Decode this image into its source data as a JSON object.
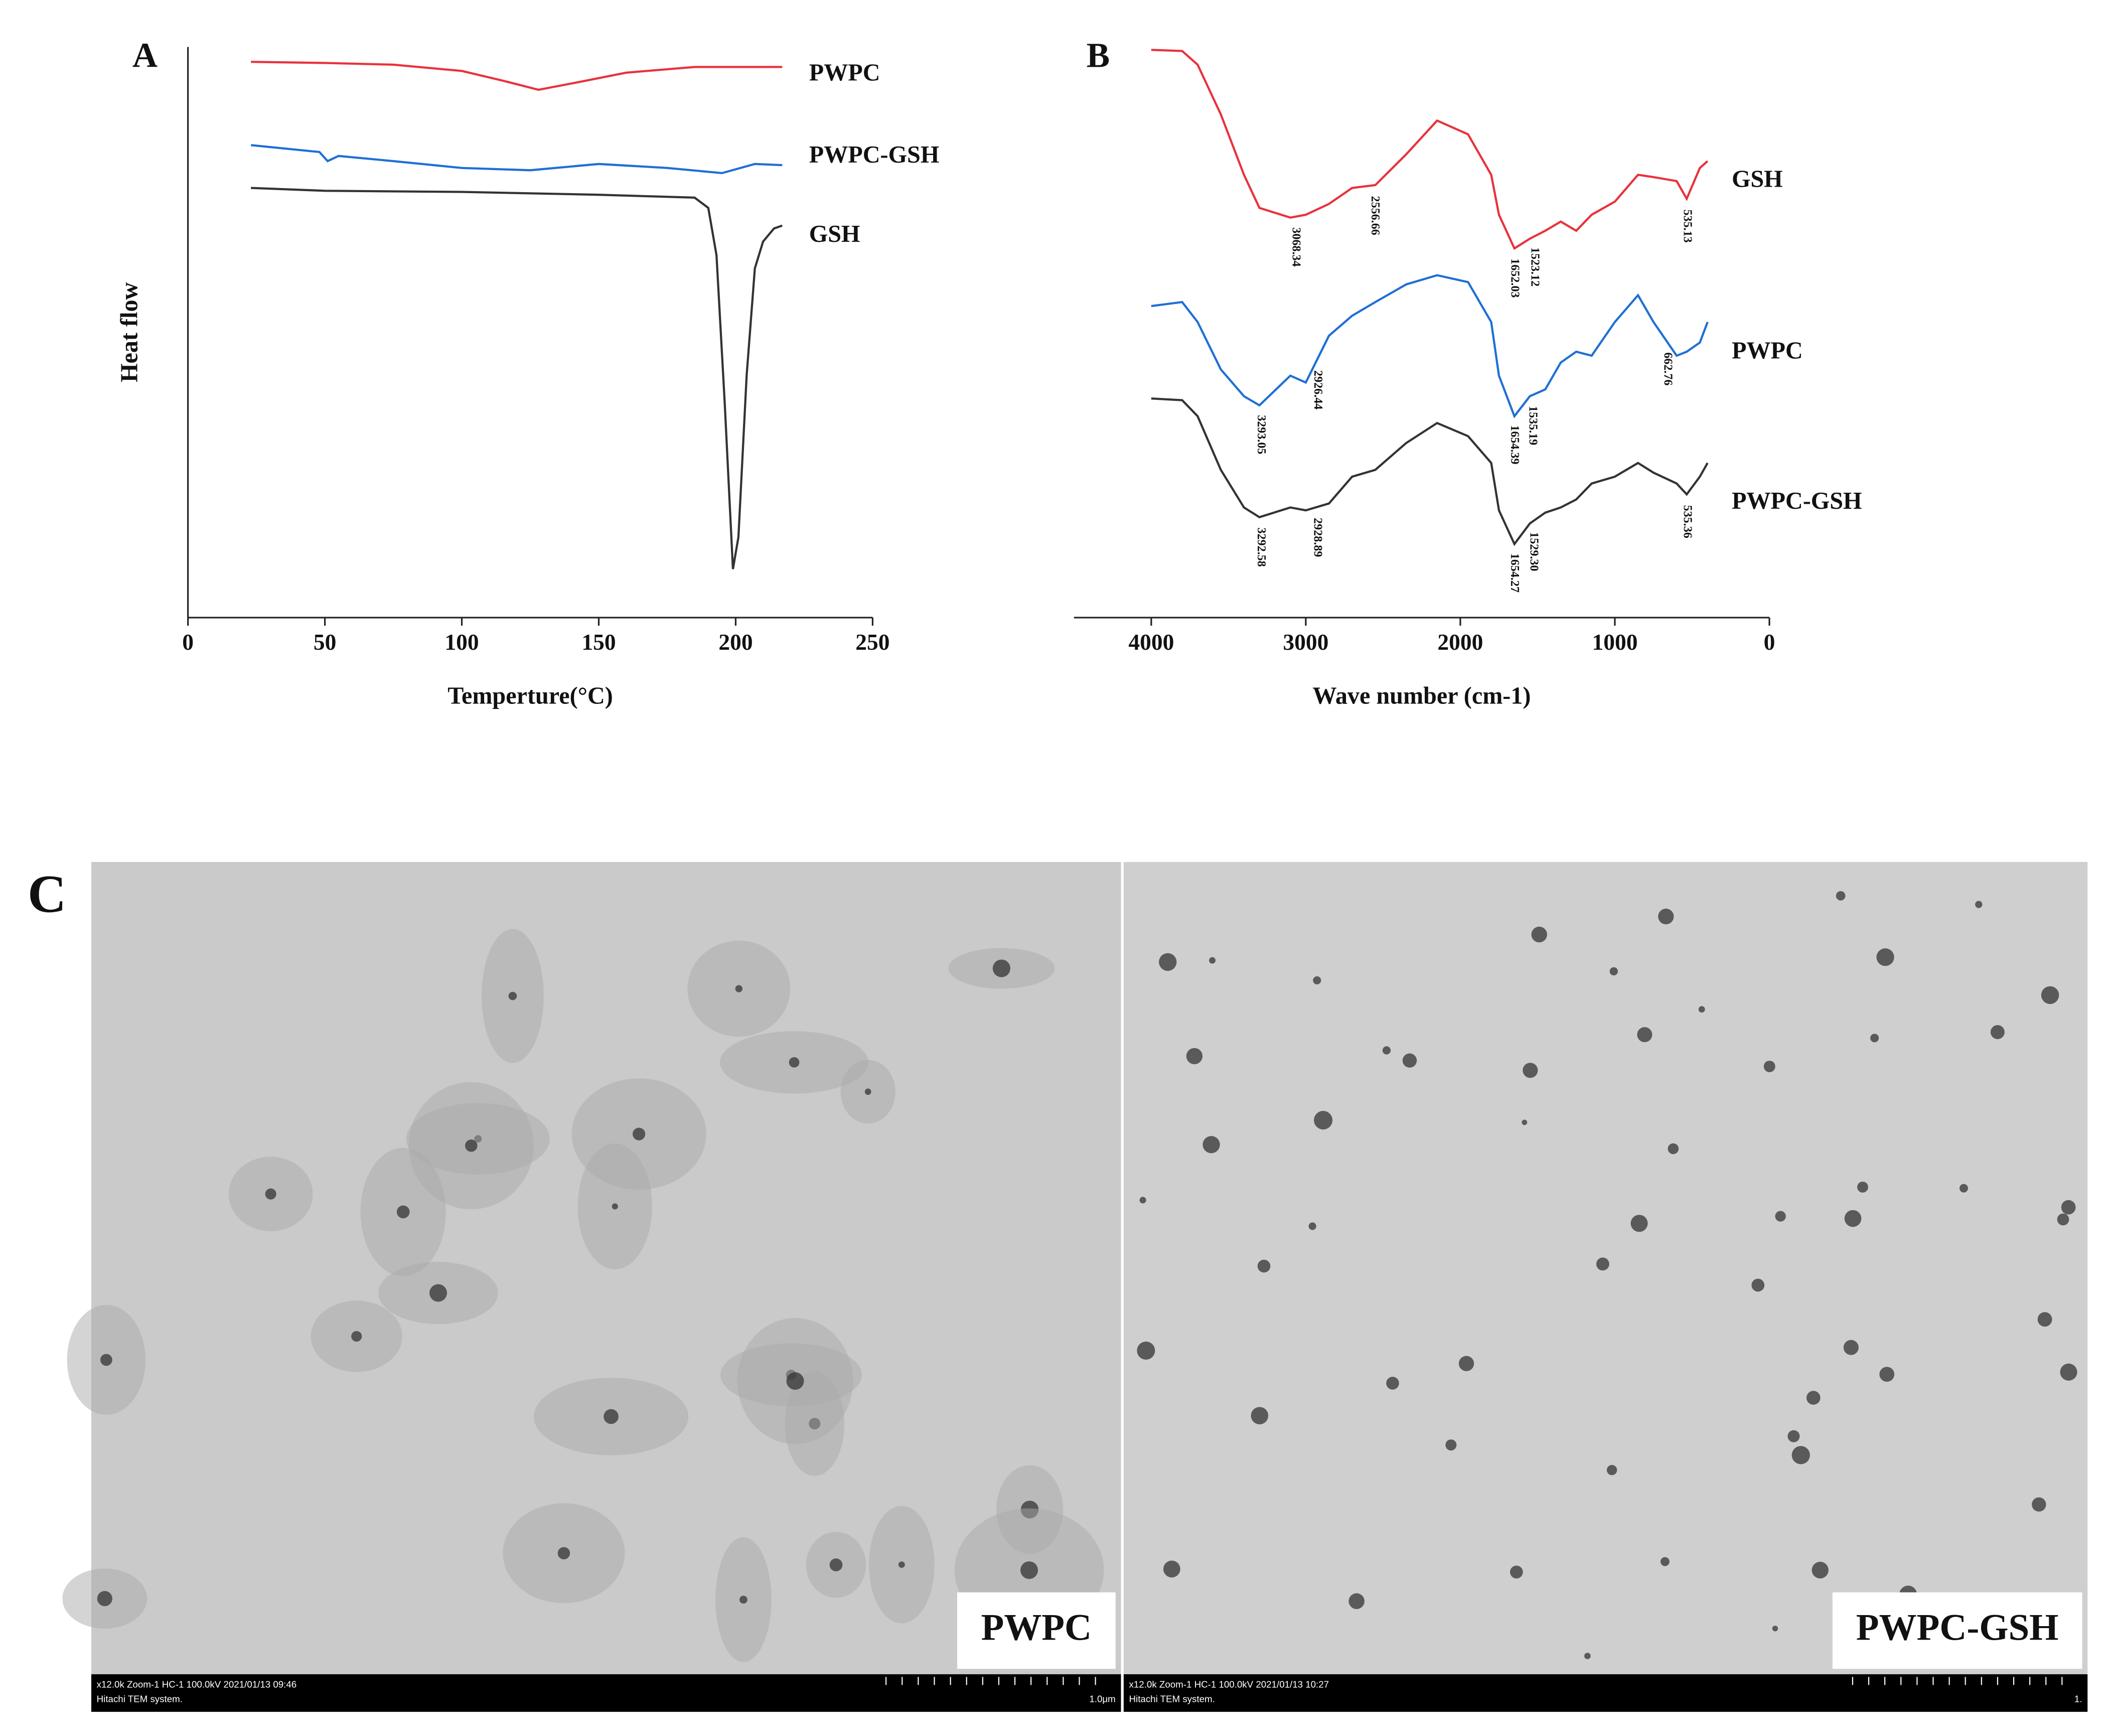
{
  "chart_data": [
    {
      "type": "line",
      "panel_label": "A",
      "ylabel": "Heat flow",
      "xlabel": "Temperture(°C)",
      "xlim": [
        0,
        250
      ],
      "xticks": [
        0,
        50,
        100,
        150,
        200,
        250
      ],
      "ylim": [
        0,
        100
      ],
      "series": [
        {
          "name": "PWPC",
          "color": "#e8323c",
          "x": [
            23,
            50,
            75,
            100,
            115,
            128,
            140,
            160,
            185,
            217
          ],
          "values": [
            97.4,
            97.2,
            96.9,
            95.8,
            94.1,
            92.5,
            93.6,
            95.5,
            96.5,
            96.5
          ]
        },
        {
          "name": "PWPC-GSH",
          "color": "#1f6fd6",
          "x": [
            23,
            48,
            51,
            55,
            75,
            100,
            125,
            150,
            175,
            195,
            207,
            217
          ],
          "values": [
            82.8,
            81.6,
            80.0,
            80.9,
            80.0,
            78.8,
            78.4,
            79.5,
            78.8,
            77.9,
            79.5,
            79.3
          ]
        },
        {
          "name": "GSH",
          "color": "#333333",
          "x": [
            23,
            50,
            100,
            150,
            185,
            190,
            193,
            196,
            199,
            201,
            204,
            207,
            210,
            214,
            217
          ],
          "values": [
            75.3,
            74.8,
            74.6,
            74.1,
            73.6,
            71.8,
            63.5,
            37.6,
            8.5,
            14.1,
            42.4,
            61.2,
            65.9,
            68.2,
            68.7
          ]
        }
      ]
    },
    {
      "type": "line",
      "panel_label": "B",
      "xlabel": "Wave number (cm-1)",
      "xlim": [
        4500,
        0
      ],
      "xticks": [
        4000,
        3000,
        2000,
        1000,
        0
      ],
      "ylim": [
        0,
        100
      ],
      "x": [
        4000,
        3800,
        3700,
        3550,
        3400,
        3300,
        3100,
        3000,
        2850,
        2700,
        2550,
        2350,
        2150,
        1950,
        1800,
        1750,
        1650,
        1550,
        1450,
        1350,
        1250,
        1150,
        1000,
        850,
        750,
        600,
        535,
        450,
        400
      ],
      "series": [
        {
          "name": "GSH",
          "color": "#e8323c",
          "values": [
            99.5,
            99.3,
            96.9,
            88.2,
            77.6,
            71.8,
            70.1,
            70.6,
            72.5,
            75.3,
            75.8,
            81.2,
            87.1,
            84.7,
            77.6,
            70.6,
            64.7,
            66.4,
            67.8,
            69.4,
            67.8,
            70.6,
            72.9,
            77.6,
            77.2,
            76.5,
            73.4,
            78.8,
            80.0
          ],
          "peaks": [
            3068.34,
            2556.66,
            1652.03,
            1523.12,
            535.13
          ]
        },
        {
          "name": "PWPC",
          "color": "#1f6fd6",
          "values": [
            54.6,
            55.3,
            51.8,
            43.5,
            38.8,
            37.2,
            42.4,
            41.2,
            49.4,
            52.9,
            55.3,
            58.4,
            60.0,
            58.8,
            51.8,
            42.4,
            35.3,
            38.8,
            40.0,
            44.7,
            46.6,
            45.9,
            51.8,
            56.5,
            51.8,
            45.9,
            46.6,
            48.2,
            51.8
          ],
          "peaks": [
            3293.05,
            2926.44,
            1654.39,
            1535.19,
            662.76
          ]
        },
        {
          "name": "PWPC-GSH",
          "color": "#333333",
          "values": [
            38.4,
            38.1,
            35.3,
            25.9,
            19.3,
            17.6,
            19.3,
            18.8,
            20.0,
            24.7,
            25.9,
            30.6,
            34.1,
            31.8,
            27.1,
            18.8,
            12.9,
            16.5,
            18.4,
            19.3,
            20.7,
            23.5,
            24.7,
            27.1,
            25.4,
            23.5,
            21.6,
            24.7,
            27.1
          ],
          "peaks": [
            3292.58,
            2928.89,
            1654.27,
            {
              "value": 1529.3,
              "label": "1529.30"
            },
            535.36
          ]
        }
      ]
    }
  ],
  "tem_images": {
    "panel_label": "C",
    "images": [
      {
        "label": "PWPC",
        "info": "x12.0k Zoom-1 HC-1 100.0kV 2021/01/13 09:46",
        "system": "Hitachi TEM system.",
        "scale": "1.0μm"
      },
      {
        "label": "PWPC-GSH",
        "info": "x12.0k Zoom-1 HC-1 100.0kV 2021/01/13 10:27",
        "system": "Hitachi TEM system.",
        "scale": "1."
      }
    ]
  }
}
